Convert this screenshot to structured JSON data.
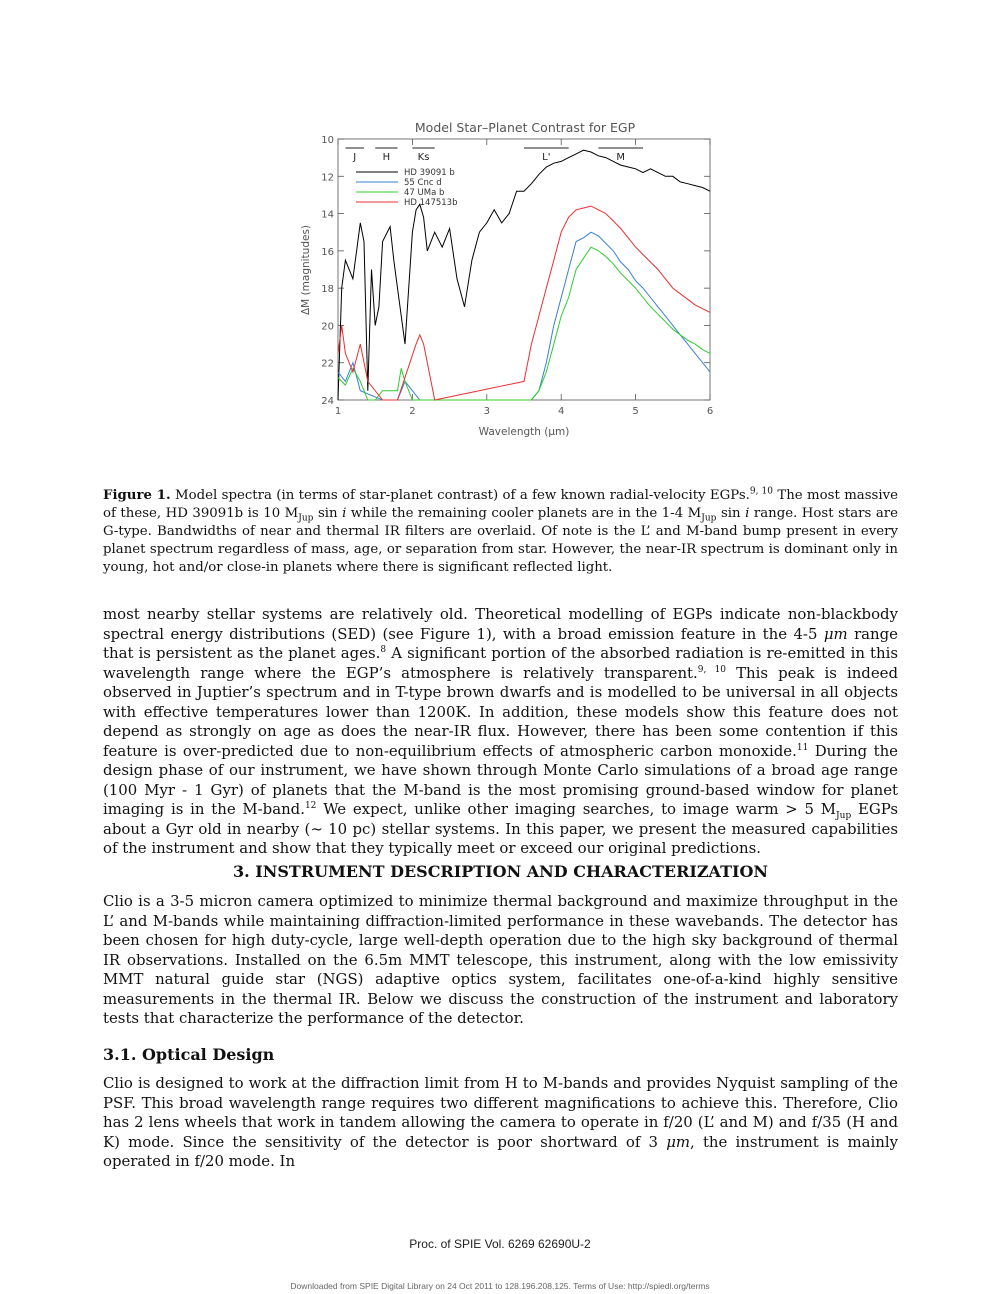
{
  "chart_data": {
    "type": "line",
    "title": "Model Star–Planet Contrast for EGP",
    "xlabel": "Wavelength (μm)",
    "ylabel": "ΔM (magnitudes)",
    "xlim": [
      1,
      6
    ],
    "ylim": [
      24,
      10
    ],
    "y_inverted": true,
    "xticks": [
      "1",
      "2",
      "3",
      "4",
      "5",
      "6"
    ],
    "yticks": [
      "10",
      "12",
      "14",
      "16",
      "18",
      "20",
      "22",
      "24"
    ],
    "legend_position": "top-left",
    "bands": [
      {
        "label": "J",
        "range": [
          1.1,
          1.35
        ]
      },
      {
        "label": "H",
        "range": [
          1.5,
          1.8
        ]
      },
      {
        "label": "Ks",
        "range": [
          2.0,
          2.3
        ]
      },
      {
        "label": "L'",
        "range": [
          3.5,
          4.1
        ]
      },
      {
        "label": "M",
        "range": [
          4.5,
          5.1
        ]
      }
    ],
    "series": [
      {
        "name": "HD 39091 b",
        "color": "#000000",
        "x": [
          1.0,
          1.05,
          1.1,
          1.2,
          1.3,
          1.35,
          1.4,
          1.45,
          1.5,
          1.55,
          1.6,
          1.7,
          1.75,
          1.8,
          1.9,
          2.0,
          2.05,
          2.1,
          2.15,
          2.2,
          2.3,
          2.4,
          2.5,
          2.6,
          2.7,
          2.8,
          2.9,
          3.0,
          3.1,
          3.2,
          3.3,
          3.4,
          3.5,
          3.6,
          3.7,
          3.8,
          3.9,
          4.0,
          4.1,
          4.2,
          4.3,
          4.4,
          4.5,
          4.6,
          4.7,
          4.8,
          4.9,
          5.0,
          5.1,
          5.2,
          5.3,
          5.4,
          5.5,
          5.6,
          5.7,
          5.8,
          5.9,
          6.0
        ],
        "y": [
          24.0,
          18.0,
          16.5,
          17.5,
          14.5,
          15.5,
          23.5,
          17.0,
          20.0,
          19.0,
          15.5,
          14.7,
          16.5,
          18.0,
          21.0,
          15.0,
          13.8,
          13.5,
          14.2,
          16.0,
          15.0,
          15.8,
          14.8,
          17.5,
          19.0,
          16.5,
          15.0,
          14.5,
          13.8,
          14.5,
          14.0,
          12.8,
          12.8,
          12.4,
          11.9,
          11.5,
          11.3,
          11.2,
          11.0,
          10.8,
          10.6,
          10.7,
          10.9,
          11.0,
          11.2,
          11.4,
          11.5,
          11.6,
          11.8,
          11.6,
          11.8,
          12.0,
          12.0,
          12.3,
          12.4,
          12.5,
          12.6,
          12.8
        ]
      },
      {
        "name": "55 Cnc d",
        "color": "#3a7fd6",
        "x": [
          1.0,
          1.1,
          1.2,
          1.3,
          1.6,
          1.8,
          1.9,
          2.1,
          3.6,
          3.7,
          3.8,
          3.9,
          4.0,
          4.1,
          4.2,
          4.3,
          4.4,
          4.5,
          4.6,
          4.7,
          4.8,
          4.9,
          5.0,
          5.1,
          5.2,
          5.3,
          5.4,
          5.5,
          5.6,
          5.7,
          5.8,
          5.9,
          6.0
        ],
        "y": [
          22.5,
          23.0,
          22.0,
          23.5,
          24.0,
          24.0,
          23.0,
          24.0,
          24.0,
          23.5,
          22.0,
          20.0,
          18.5,
          17.0,
          15.5,
          15.3,
          15.0,
          15.2,
          15.6,
          16.0,
          16.6,
          17.0,
          17.6,
          18.0,
          18.5,
          19.0,
          19.5,
          20.0,
          20.5,
          21.0,
          21.5,
          22.0,
          22.5
        ]
      },
      {
        "name": "47 UMa b",
        "color": "#2ecc2e",
        "x": [
          1.0,
          1.1,
          1.2,
          1.3,
          1.4,
          1.5,
          1.6,
          1.8,
          1.85,
          1.9,
          2.0,
          2.1,
          3.6,
          3.7,
          3.8,
          3.9,
          4.0,
          4.1,
          4.2,
          4.3,
          4.4,
          4.5,
          4.6,
          4.7,
          4.8,
          4.9,
          5.0,
          5.1,
          5.2,
          5.3,
          5.4,
          5.5,
          5.6,
          5.7,
          5.8,
          5.9,
          6.0
        ],
        "y": [
          22.8,
          23.2,
          22.3,
          23.0,
          24.0,
          24.0,
          23.5,
          23.5,
          22.3,
          23.0,
          24.0,
          24.0,
          24.0,
          23.5,
          22.5,
          21.0,
          19.5,
          18.5,
          17.0,
          16.4,
          15.8,
          16.0,
          16.3,
          16.7,
          17.2,
          17.6,
          18.0,
          18.5,
          19.0,
          19.4,
          19.8,
          20.2,
          20.5,
          20.8,
          21.0,
          21.3,
          21.5
        ]
      },
      {
        "name": "HD 147513b",
        "color": "#e83030",
        "x": [
          1.0,
          1.05,
          1.1,
          1.2,
          1.3,
          1.4,
          1.6,
          1.8,
          2.05,
          2.1,
          2.15,
          2.3,
          3.5,
          3.6,
          3.7,
          3.8,
          3.9,
          4.0,
          4.1,
          4.2,
          4.3,
          4.4,
          4.5,
          4.6,
          4.7,
          4.8,
          4.9,
          5.0,
          5.1,
          5.2,
          5.3,
          5.4,
          5.5,
          5.6,
          5.7,
          5.8,
          5.9,
          6.0
        ],
        "y": [
          21.5,
          20.0,
          21.5,
          22.5,
          21.0,
          23.0,
          24.0,
          24.0,
          21.0,
          20.5,
          21.0,
          24.0,
          23.0,
          21.0,
          19.5,
          18.0,
          16.5,
          15.0,
          14.2,
          13.8,
          13.7,
          13.6,
          13.8,
          14.0,
          14.4,
          14.8,
          15.3,
          15.8,
          16.2,
          16.6,
          17.0,
          17.5,
          18.0,
          18.3,
          18.6,
          18.9,
          19.1,
          19.3
        ]
      }
    ]
  },
  "caption": {
    "label": "Figure 1.",
    "part1": "Model spectra (in terms of star-planet contrast) of a few known radial-velocity EGPs.",
    "ref1": "9, 10",
    "part2": "The most massive of these, HD 39091b is 10 M",
    "sub1": "Jup",
    "part3": "sin",
    "part4": "while the remaining cooler planets are in the 1-4 M",
    "sub2": "Jup",
    "part5": "sin",
    "part6": "range. Host stars are G-type. Bandwidths of near and thermal IR filters are overlaid. Of note is the L’ and M-band bump present in every planet spectrum regardless of mass, age, or separation from star. However, the near-IR spectrum is dominant only in young, hot and/or close-in planets where there is significant reflected light."
  },
  "para1": {
    "t1": "most nearby stellar systems are relatively old. Theoretical modelling of EGPs indicate non-blackbody spectral energy distributions (SED) (see Figure 1), with a broad emission feature in the 4-5",
    "unit1": "μm",
    "t2": "range that is persistent as the planet ages.",
    "ref1": "8",
    "t3": "A significant portion of the absorbed radiation is re-emitted in this wavelength range where the EGP’s atmosphere is relatively transparent.",
    "ref2": "9, 10",
    "t4": "This peak is indeed observed in Juptier’s spectrum and in T-type brown dwarfs and is modelled to be universal in all objects with effective temperatures lower than 1200K. In addition, these models show this feature does not depend as strongly on age as does the near-IR flux. However, there has been some contention if this feature is over-predicted due to non-equilibrium effects of atmospheric carbon monoxide.",
    "ref3": "11",
    "t5": "During the design phase of our instrument, we have shown through Monte Carlo simulations of a broad age range (100 Myr - 1 Gyr) of planets that the M-band is the most promising ground-based window for planet imaging is in the M-band.",
    "ref4": "12",
    "t6": "We expect, unlike other imaging searches, to image warm > 5 M",
    "sub1": "Jup",
    "t7": "EGPs about a Gyr old in nearby (∼ 10 pc) stellar systems. In this paper, we present the measured capabilities of the instrument and show that they typically meet or exceed our original predictions."
  },
  "section3": {
    "title": "3. INSTRUMENT DESCRIPTION AND CHARACTERIZATION",
    "body": "Clio is a 3-5 micron camera optimized to minimize thermal background and maximize throughput in the L’ and M-bands while maintaining diffraction-limited performance in these wavebands. The detector has been chosen for high duty-cycle, large well-depth operation due to the high sky background of thermal IR observations. Installed on the 6.5m MMT telescope, this instrument, along with the low emissivity MMT natural guide star (NGS) adaptive optics system, facilitates one-of-a-kind highly sensitive measurements in the thermal IR. Below we discuss the construction of the instrument and laboratory tests that characterize the performance of the detector."
  },
  "section31": {
    "title": "3.1. Optical Design",
    "t1": "Clio is designed to work at the diffraction limit from H to M-bands and provides Nyquist sampling of the PSF. This broad wavelength range requires two different magnifications to achieve this. Therefore, Clio has 2 lens wheels that work in tandem allowing the camera to operate in f/20 (L’ and M) and f/35 (H and K) mode. Since the sensitivity of the detector is poor shortward of 3",
    "unit1": "μm",
    "t2": ", the instrument is mainly operated in f/20 mode. In"
  },
  "footer": "Proc. of SPIE Vol. 6269  62690U-2",
  "download_note": "Downloaded from SPIE Digital Library on 24 Oct 2011 to 128.196.208.125. Terms of Use:  http://spiedl.org/terms"
}
